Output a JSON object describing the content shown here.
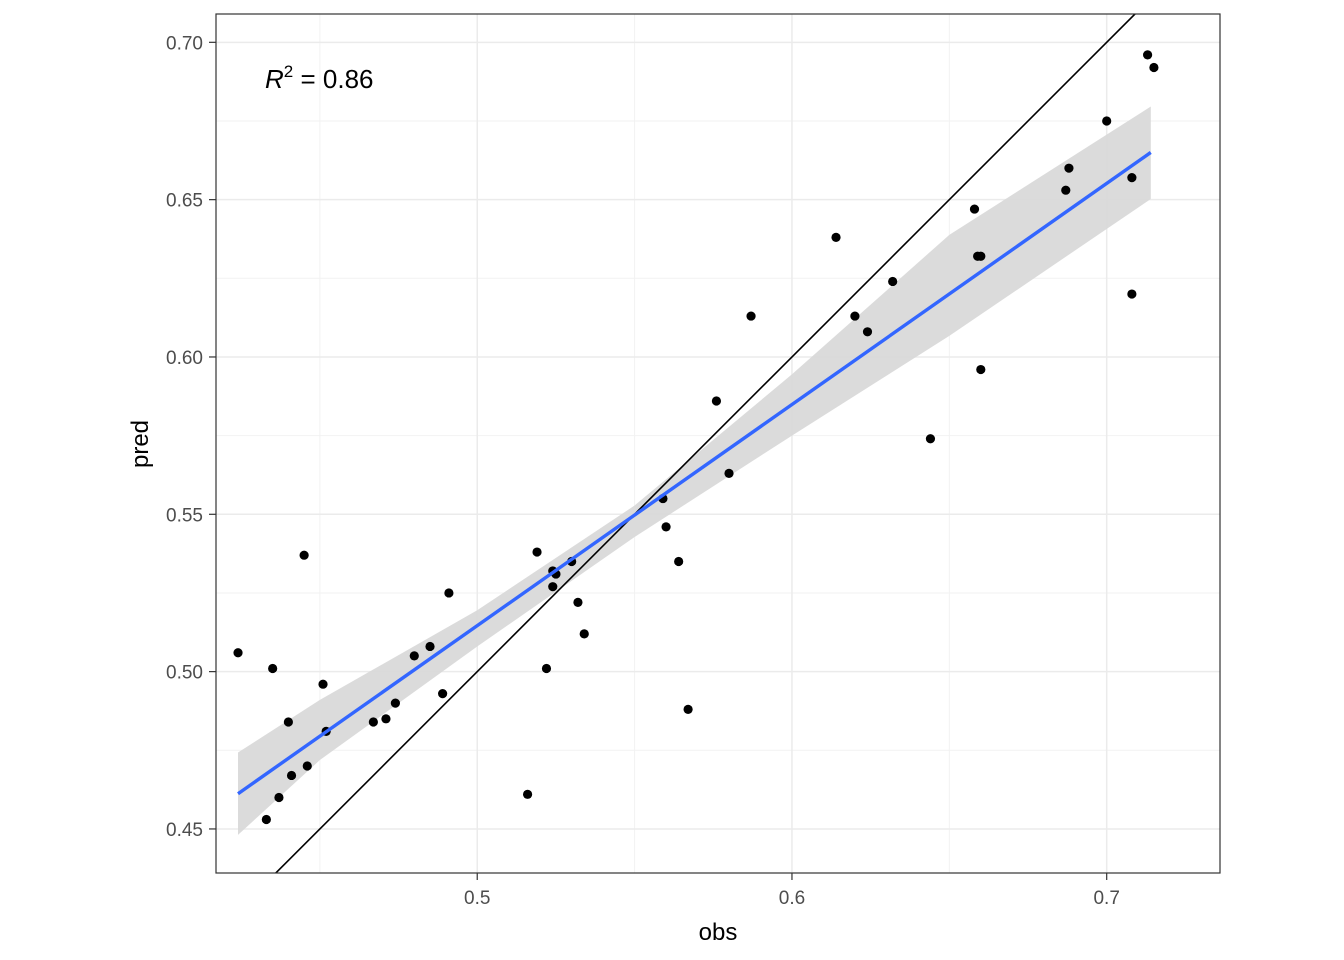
{
  "chart_data": {
    "type": "scatter",
    "xlabel": "obs",
    "ylabel": "pred",
    "xlim": [
      0.417,
      0.736
    ],
    "ylim": [
      0.436,
      0.709
    ],
    "x_ticks": [
      0.5,
      0.6,
      0.7
    ],
    "x_tick_labels": [
      "0.5",
      "0.6",
      "0.7"
    ],
    "y_ticks": [
      0.45,
      0.5,
      0.55,
      0.6,
      0.65,
      0.7
    ],
    "y_tick_labels": [
      "0.45",
      "0.50",
      "0.55",
      "0.60",
      "0.65",
      "0.70"
    ],
    "grid": true,
    "annotation": {
      "r_symbol": "R",
      "superscript": "2",
      "value_text": " = 0.86"
    },
    "identity_line": {
      "slope": 1,
      "intercept": 0
    },
    "fit_line": {
      "x": [
        0.424,
        0.714
      ],
      "y": [
        0.4612,
        0.665
      ],
      "color": "#3366ff",
      "ci_x": [
        0.424,
        0.45,
        0.5,
        0.55,
        0.6,
        0.65,
        0.714
      ],
      "ci_lower": [
        0.4481,
        0.4719,
        0.508,
        0.5428,
        0.575,
        0.6067,
        0.6502
      ],
      "ci_upper": [
        0.4743,
        0.491,
        0.5195,
        0.5528,
        0.5945,
        0.6388,
        0.6796
      ],
      "band_color": "#d9d9d9"
    },
    "points": {
      "color": "#000000",
      "x": [
        0.424,
        0.433,
        0.435,
        0.437,
        0.44,
        0.441,
        0.445,
        0.446,
        0.451,
        0.452,
        0.467,
        0.471,
        0.474,
        0.48,
        0.485,
        0.489,
        0.491,
        0.516,
        0.519,
        0.522,
        0.524,
        0.524,
        0.525,
        0.53,
        0.532,
        0.534,
        0.559,
        0.56,
        0.564,
        0.567,
        0.576,
        0.58,
        0.587,
        0.614,
        0.62,
        0.624,
        0.632,
        0.644,
        0.658,
        0.659,
        0.66,
        0.66,
        0.687,
        0.688,
        0.7,
        0.708,
        0.708,
        0.713,
        0.715
      ],
      "y": [
        0.506,
        0.453,
        0.501,
        0.46,
        0.484,
        0.467,
        0.537,
        0.47,
        0.496,
        0.481,
        0.484,
        0.485,
        0.49,
        0.505,
        0.508,
        0.493,
        0.525,
        0.461,
        0.538,
        0.501,
        0.532,
        0.527,
        0.531,
        0.535,
        0.522,
        0.512,
        0.555,
        0.546,
        0.535,
        0.488,
        0.586,
        0.563,
        0.613,
        0.638,
        0.613,
        0.608,
        0.624,
        0.574,
        0.647,
        0.632,
        0.632,
        0.596,
        0.653,
        0.66,
        0.675,
        0.62,
        0.657,
        0.696,
        0.692
      ]
    }
  }
}
